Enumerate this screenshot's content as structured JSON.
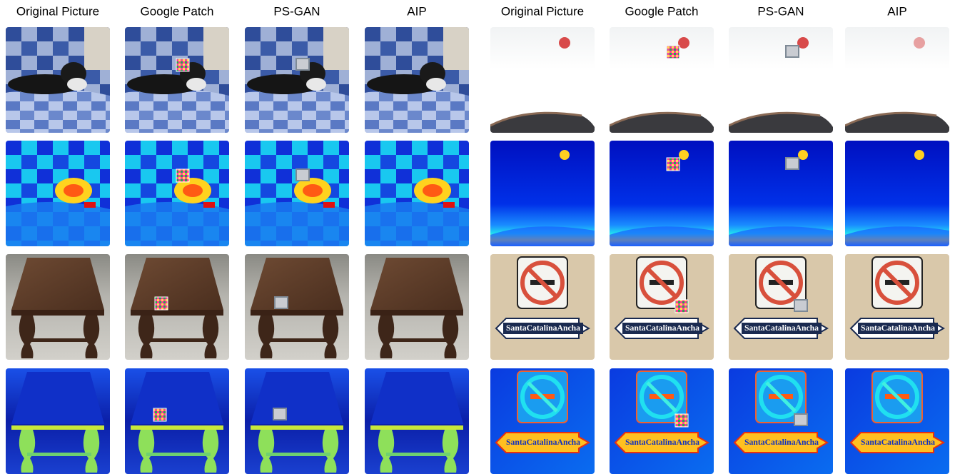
{
  "left": {
    "columns": [
      "Original Picture",
      "Google Patch",
      "PS-GAN",
      "AIP"
    ]
  },
  "right": {
    "columns": [
      "Original Picture",
      "Google Patch",
      "PS-GAN",
      "AIP"
    ]
  },
  "sign_text": "SantaCatalinaAncha"
}
